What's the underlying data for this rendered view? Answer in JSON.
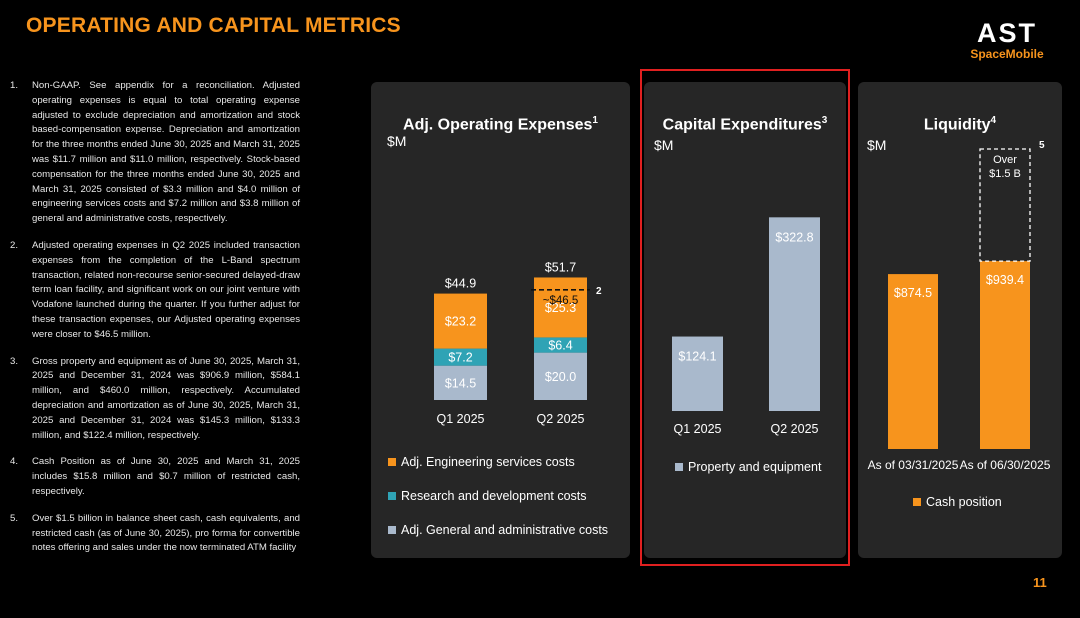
{
  "page": {
    "title": "OPERATING AND CAPITAL METRICS",
    "page_number": "11",
    "logo": {
      "main": "AST",
      "sub": "SpaceMobile"
    }
  },
  "notes": [
    {
      "num": "1.",
      "text": "Non-GAAP. See appendix for a reconciliation. Adjusted operating expenses is equal to total operating expense adjusted to exclude depreciation and amortization and stock based-compensation expense. Depreciation and amortization for the three months ended June 30, 2025 and March 31, 2025 was $11.7 million and $11.0 million, respectively. Stock-based compensation for the three months ended June 30, 2025 and March 31, 2025 consisted of $3.3 million and $4.0 million of engineering services costs and $7.2 million and $3.8 million of general and administrative costs, respectively."
    },
    {
      "num": "2.",
      "text": "Adjusted operating expenses in Q2 2025 included transaction expenses from the completion of the L-Band spectrum transaction, related non-recourse senior-secured delayed-draw term loan facility, and significant work on our joint venture with Vodafone launched during the quarter. If you further adjust for these transaction expenses, our Adjusted operating expenses were closer to $46.5 million."
    },
    {
      "num": "3.",
      "text": "Gross property and equipment as of June 30, 2025, March 31, 2025 and December 31, 2024 was $906.9 million, $584.1 million, and $460.0 million, respectively. Accumulated depreciation and amortization as of June 30, 2025, March 31, 2025 and December 31, 2024 was $145.3 million, $133.3 million, and $122.4 million, respectively."
    },
    {
      "num": "4.",
      "text": "Cash Position as of June 30, 2025 and March 31, 2025 includes $15.8 million and $0.7 million of restricted cash, respectively."
    },
    {
      "num": "5.",
      "text": "Over $1.5 billion in balance sheet cash, cash equivalents, and restricted cash (as of June 30, 2025), pro forma for convertible notes offering and sales under the now terminated ATM facility"
    }
  ],
  "colors": {
    "orange": "#f7941d",
    "teal": "#2fa3b5",
    "lightblue": "#a9b9cc",
    "panel": "#262626",
    "red_box": "#e02020"
  },
  "chart_data": [
    {
      "type": "bar",
      "stacked": true,
      "title": "Adj. Operating Expenses",
      "title_sup": "1",
      "unit": "$M",
      "categories": [
        "Q1 2025",
        "Q2 2025"
      ],
      "series": [
        {
          "name": "Adj. General and administrative costs",
          "values": [
            14.5,
            20.0
          ],
          "labels": [
            "$14.5",
            "$20.0"
          ],
          "color": "#a9b9cc"
        },
        {
          "name": "Research and development costs",
          "values": [
            7.2,
            6.4
          ],
          "labels": [
            "$7.2",
            "$6.4"
          ],
          "color": "#2fa3b5"
        },
        {
          "name": "Adj. Engineering services costs",
          "values": [
            23.2,
            25.3
          ],
          "labels": [
            "$23.2",
            "$25.3"
          ],
          "color": "#f7941d"
        }
      ],
      "totals": [
        "$44.9",
        "$51.7"
      ],
      "annotation": {
        "category": "Q2 2025",
        "value": 46.5,
        "label": "~$46.5",
        "footnote": "2"
      },
      "legend": [
        "Adj. Engineering services costs",
        "Research and development costs",
        "Adj. General and administrative costs"
      ]
    },
    {
      "type": "bar",
      "title": "Capital Expenditures",
      "title_sup": "3",
      "unit": "$M",
      "categories": [
        "Q1 2025",
        "Q2 2025"
      ],
      "series": [
        {
          "name": "Property and equipment",
          "values": [
            124.1,
            322.8
          ],
          "labels": [
            "$124.1",
            "$322.8"
          ],
          "color": "#a9b9cc"
        }
      ],
      "legend": [
        "Property and equipment"
      ]
    },
    {
      "type": "bar",
      "title": "Liquidity",
      "title_sup": "4",
      "unit": "$M",
      "categories": [
        "As of 03/31/2025",
        "As of 06/30/2025"
      ],
      "series": [
        {
          "name": "Cash position",
          "values": [
            874.5,
            939.4
          ],
          "labels": [
            "$874.5",
            "$939.4"
          ],
          "color": "#f7941d"
        }
      ],
      "pro_forma": {
        "category": "As of 06/30/2025",
        "value": 1500,
        "label_line1": "Over",
        "label_line2": "$1.5 B",
        "footnote": "5"
      },
      "legend": [
        "Cash position"
      ]
    }
  ]
}
